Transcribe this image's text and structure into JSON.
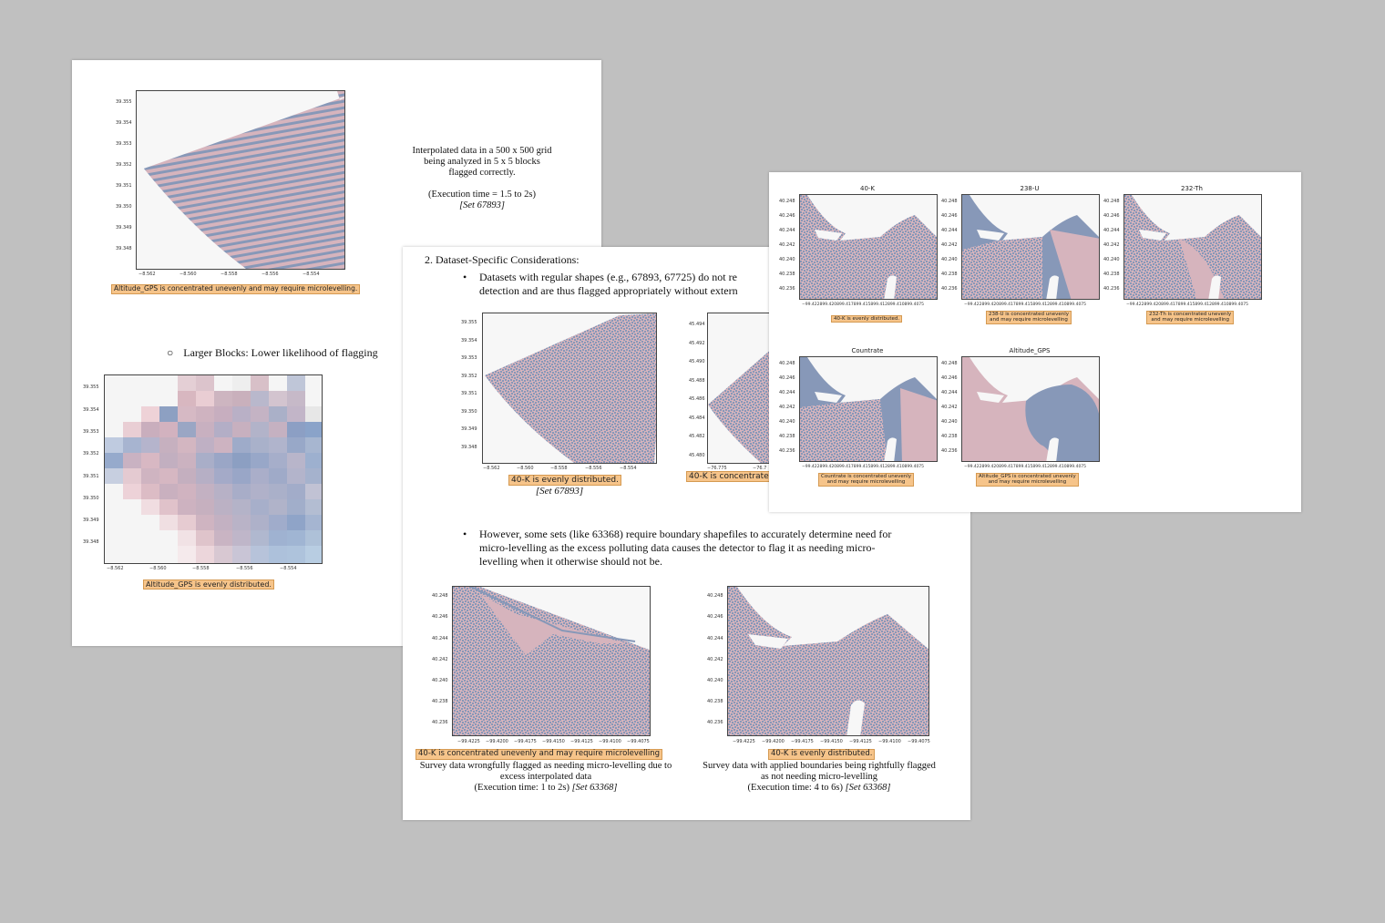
{
  "page1": {
    "top_caption": "Altitude_GPS is concentrated unevenly and may require microlevelling.",
    "note_lines": [
      "Interpolated data in a 500 x 500 grid",
      "being analyzed in 5 x 5 blocks",
      "flagged correctly."
    ],
    "note_time": "(Execution time = 1.5 to 2s)",
    "note_set": "[Set 67893]",
    "bullet_marker": "○",
    "bullet_text": "Larger Blocks: Lower likelihood of flagging",
    "bottom_caption": "Altitude_GPS is evenly distributed.",
    "yticks": [
      "39.355",
      "39.354",
      "39.353",
      "39.352",
      "39.351",
      "39.350",
      "39.349",
      "39.348"
    ],
    "xticks": [
      "−8.562",
      "−8.560",
      "−8.558",
      "−8.556",
      "−8.554"
    ]
  },
  "page2": {
    "heading": "2.  Dataset-Specific Considerations:",
    "bullet1_lines": [
      "Datasets with regular shapes (e.g., 67893, 67725) do not re",
      "detection and are thus flagged appropriately without extern"
    ],
    "left_caption": "40-K is evenly distributed.",
    "left_set": "[Set 67893]",
    "mid_caption": "40-K is concentrate",
    "left_yticks": [
      "39.355",
      "39.354",
      "39.353",
      "39.352",
      "39.351",
      "39.350",
      "39.349",
      "39.348"
    ],
    "left_xticks": [
      "−8.562",
      "−8.560",
      "−8.558",
      "−8.556",
      "−8.554"
    ],
    "mid_yticks": [
      "45.494",
      "45.492",
      "45.490",
      "45.488",
      "45.486",
      "45.484",
      "45.482",
      "45.480"
    ],
    "mid_xticks": [
      "−76.775",
      "−76.7"
    ],
    "bullet_marker": "•",
    "bullet2_lines": [
      "However, some sets (like 63368) require boundary shapefiles to accurately determine need for",
      "micro-levelling as the excess polluting data causes the detector to flag it as needing micro-",
      "levelling when it otherwise should not be."
    ],
    "bl_caption": "40-K is concentrated unevenly and may require microlevelling",
    "bl_desc": [
      "Survey data wrongfully flagged as needing micro-levelling due to",
      "excess interpolated data"
    ],
    "bl_time_prefix": "(Execution time: 1 to 2s) ",
    "bl_set": "[Set 63368]",
    "br_caption": "40-K is evenly distributed.",
    "br_desc": [
      "Survey data with applied boundaries being rightfully flagged",
      "as not needing micro-levelling"
    ],
    "br_time_prefix": "(Execution time: 4 to 6s) ",
    "br_set": "[Set 63368]",
    "bottom_yticks": [
      "40.248",
      "40.246",
      "40.244",
      "40.242",
      "40.240",
      "40.238",
      "40.236"
    ],
    "bottom_xticks": [
      "−99.4225",
      "−99.4200",
      "−99.4175",
      "−99.4150",
      "−99.4125",
      "−99.4100",
      "−99.4075"
    ]
  },
  "page3": {
    "panels": [
      {
        "title": "40-K",
        "caption": [
          "40-K is evenly distributed."
        ]
      },
      {
        "title": "238-U",
        "caption": [
          "238-U is concentrated unevenly",
          "and may require microlevelling"
        ]
      },
      {
        "title": "232-Th",
        "caption": [
          "232-Th is concentrated unevenly",
          "and may require microlevelling"
        ]
      },
      {
        "title": "Countrate",
        "caption": [
          "Countrate is concentrated unevenly",
          "and may require microlevelling"
        ]
      },
      {
        "title": "Altitude_GPS",
        "caption": [
          "Altitude_GPS is concentrated unevenly",
          "and may require microlevelling"
        ]
      }
    ],
    "yticks": [
      "40.248",
      "40.246",
      "40.244",
      "40.242",
      "40.240",
      "40.238",
      "40.236"
    ],
    "xtick_line": "−99.422899.420899.417899.415899.412899.410899.4075"
  },
  "colors": {
    "pink": "#d6b4bd",
    "blue": "#8798b8",
    "highlight": "#f6c48a",
    "background": "#c0c0c0"
  }
}
